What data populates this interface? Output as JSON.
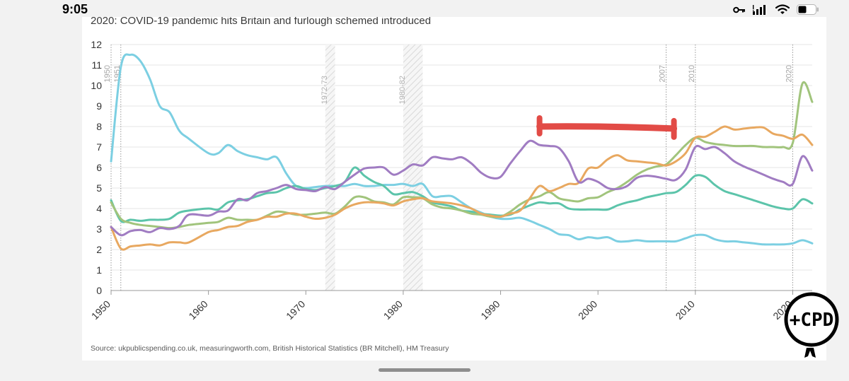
{
  "status_bar": {
    "time": "9:05",
    "icons": [
      "key-icon",
      "signal-icon",
      "wifi-icon",
      "battery-icon"
    ]
  },
  "logo": {
    "text": "+CPD"
  },
  "chart_data": {
    "type": "line",
    "title": "2020: COVID-19 pandemic hits Britain and furlough schemed introduced",
    "source": "Source: ukpublicspending.co.uk, measuringworth.com, British Historical Statistics (BR Mitchell), HM Treasury",
    "xlabel": "",
    "ylabel": "",
    "xlim": [
      1950,
      2022
    ],
    "ylim": [
      0,
      12
    ],
    "x_ticks": [
      "1950",
      "1960",
      "1970",
      "1980",
      "1990",
      "2000",
      "2010",
      "2020"
    ],
    "y_ticks": [
      "0",
      "1",
      "2",
      "3",
      "4",
      "5",
      "6",
      "7",
      "8",
      "9",
      "10",
      "11",
      "12"
    ],
    "grid": true,
    "markers": [
      {
        "label": "1950",
        "x": 1950
      },
      {
        "label": "1951",
        "x": 1951
      },
      {
        "label": "2007",
        "x": 2007
      },
      {
        "label": "2010",
        "x": 2010
      },
      {
        "label": "2020",
        "x": 2020
      }
    ],
    "bands": [
      {
        "label": "1972-73",
        "from": 1972,
        "to": 1973
      },
      {
        "label": "1980-82",
        "from": 1980,
        "to": 1982
      }
    ],
    "series": [
      {
        "name": "blue",
        "color": "#7ccfe2",
        "x": [
          1950,
          1951,
          1952,
          1953,
          1954,
          1955,
          1956,
          1957,
          1958,
          1960,
          1961,
          1962,
          1963,
          1964,
          1965,
          1966,
          1967,
          1968,
          1969,
          1970,
          1971,
          1972,
          1973,
          1974,
          1975,
          1976,
          1977,
          1978,
          1979,
          1980,
          1981,
          1982,
          1983,
          1984,
          1985,
          1986,
          1987,
          1988,
          1989,
          1990,
          1991,
          1992,
          1993,
          1994,
          1995,
          1996,
          1997,
          1998,
          1999,
          2000,
          2001,
          2002,
          2003,
          2004,
          2005,
          2006,
          2007,
          2008,
          2009,
          2010,
          2011,
          2012,
          2013,
          2014,
          2015,
          2016,
          2017,
          2018,
          2019,
          2020,
          2021,
          2022
        ],
        "y": [
          6.3,
          10.9,
          11.5,
          11.2,
          10.3,
          9.0,
          8.7,
          7.8,
          7.4,
          6.7,
          6.7,
          7.1,
          6.8,
          6.6,
          6.5,
          6.4,
          6.5,
          5.7,
          5.1,
          5.0,
          5.05,
          5.1,
          5.1,
          5.1,
          5.2,
          5.1,
          5.1,
          5.15,
          5.15,
          5.2,
          5.1,
          5.2,
          4.6,
          4.6,
          4.6,
          4.3,
          4.0,
          3.8,
          3.6,
          3.5,
          3.5,
          3.55,
          3.4,
          3.2,
          3.0,
          2.75,
          2.7,
          2.5,
          2.6,
          2.55,
          2.6,
          2.4,
          2.4,
          2.45,
          2.4,
          2.4,
          2.4,
          2.4,
          2.55,
          2.7,
          2.7,
          2.5,
          2.4,
          2.4,
          2.35,
          2.3,
          2.25,
          2.25,
          2.25,
          2.3,
          2.45,
          2.3
        ]
      },
      {
        "name": "teal",
        "color": "#5cc4aa",
        "x": [
          1950,
          1951,
          1952,
          1953,
          1954,
          1955,
          1956,
          1957,
          1958,
          1960,
          1961,
          1962,
          1963,
          1964,
          1965,
          1966,
          1967,
          1968,
          1969,
          1970,
          1971,
          1972,
          1973,
          1974,
          1975,
          1976,
          1977,
          1978,
          1979,
          1980,
          1981,
          1982,
          1983,
          1984,
          1985,
          1986,
          1987,
          1988,
          1989,
          1990,
          1991,
          1992,
          1993,
          1994,
          1995,
          1996,
          1997,
          1998,
          1999,
          2000,
          2001,
          2002,
          2003,
          2004,
          2005,
          2006,
          2007,
          2008,
          2009,
          2010,
          2011,
          2012,
          2013,
          2014,
          2015,
          2016,
          2017,
          2018,
          2019,
          2020,
          2021,
          2022
        ],
        "y": [
          4.4,
          3.4,
          3.45,
          3.4,
          3.45,
          3.45,
          3.5,
          3.8,
          3.9,
          4.0,
          3.95,
          4.3,
          4.4,
          4.45,
          4.6,
          4.75,
          4.8,
          5.0,
          5.1,
          4.95,
          4.9,
          5.0,
          5.1,
          5.3,
          6.0,
          5.6,
          5.3,
          5.1,
          4.7,
          4.75,
          4.8,
          4.6,
          4.3,
          4.2,
          4.1,
          3.9,
          3.85,
          3.75,
          3.7,
          3.65,
          3.7,
          3.95,
          4.15,
          4.3,
          4.25,
          4.25,
          4.0,
          3.95,
          3.95,
          3.95,
          3.95,
          4.15,
          4.3,
          4.4,
          4.55,
          4.65,
          4.75,
          4.8,
          5.15,
          5.6,
          5.55,
          5.15,
          4.85,
          4.7,
          4.55,
          4.4,
          4.25,
          4.1,
          4.0,
          4.0,
          4.45,
          4.25
        ]
      },
      {
        "name": "green",
        "color": "#a1c47c",
        "x": [
          1950,
          1951,
          1952,
          1953,
          1954,
          1955,
          1956,
          1957,
          1958,
          1960,
          1961,
          1962,
          1963,
          1964,
          1965,
          1966,
          1967,
          1968,
          1969,
          1970,
          1971,
          1972,
          1973,
          1974,
          1975,
          1976,
          1977,
          1978,
          1979,
          1980,
          1981,
          1982,
          1983,
          1984,
          1985,
          1986,
          1987,
          1988,
          1989,
          1990,
          1991,
          1992,
          1993,
          1994,
          1995,
          1996,
          1997,
          1998,
          1999,
          2000,
          2001,
          2002,
          2003,
          2004,
          2005,
          2006,
          2007,
          2008,
          2009,
          2010,
          2011,
          2012,
          2013,
          2014,
          2015,
          2016,
          2017,
          2018,
          2019,
          2020,
          2021,
          2022
        ],
        "y": [
          4.3,
          3.5,
          3.3,
          3.2,
          3.15,
          3.1,
          3.05,
          3.1,
          3.2,
          3.3,
          3.35,
          3.55,
          3.45,
          3.45,
          3.45,
          3.65,
          3.85,
          3.8,
          3.7,
          3.7,
          3.75,
          3.8,
          3.75,
          4.1,
          4.55,
          4.55,
          4.35,
          4.3,
          4.2,
          4.55,
          4.55,
          4.5,
          4.2,
          4.05,
          4.0,
          3.9,
          3.75,
          3.7,
          3.6,
          3.6,
          3.85,
          4.2,
          4.45,
          4.6,
          4.8,
          4.5,
          4.4,
          4.35,
          4.5,
          4.55,
          4.8,
          5.0,
          5.3,
          5.65,
          5.9,
          6.05,
          6.15,
          6.6,
          7.1,
          7.45,
          7.25,
          7.15,
          7.1,
          7.05,
          7.05,
          7.05,
          7.0,
          7.0,
          7.0,
          7.2,
          10.1,
          9.2
        ]
      },
      {
        "name": "orange",
        "color": "#e8a860",
        "x": [
          1950,
          1951,
          1952,
          1953,
          1954,
          1955,
          1956,
          1957,
          1958,
          1960,
          1961,
          1962,
          1963,
          1964,
          1965,
          1966,
          1967,
          1968,
          1969,
          1970,
          1971,
          1972,
          1973,
          1974,
          1975,
          1976,
          1977,
          1978,
          1979,
          1980,
          1981,
          1982,
          1983,
          1984,
          1985,
          1986,
          1987,
          1988,
          1989,
          1990,
          1991,
          1992,
          1993,
          1994,
          1995,
          1996,
          1997,
          1998,
          1999,
          2000,
          2001,
          2002,
          2003,
          2004,
          2005,
          2006,
          2007,
          2008,
          2009,
          2010,
          2011,
          2012,
          2013,
          2014,
          2015,
          2016,
          2017,
          2018,
          2019,
          2020,
          2021,
          2022
        ],
        "y": [
          3.1,
          2.05,
          2.15,
          2.2,
          2.25,
          2.2,
          2.35,
          2.35,
          2.35,
          2.85,
          2.95,
          3.1,
          3.15,
          3.35,
          3.45,
          3.6,
          3.6,
          3.75,
          3.75,
          3.6,
          3.5,
          3.55,
          3.7,
          4.0,
          4.2,
          4.3,
          4.3,
          4.25,
          4.15,
          4.35,
          4.45,
          4.5,
          4.35,
          4.3,
          4.25,
          4.15,
          4.0,
          3.75,
          3.65,
          3.6,
          3.75,
          3.9,
          4.5,
          5.1,
          4.85,
          5.0,
          5.2,
          5.25,
          5.95,
          6.0,
          6.4,
          6.6,
          6.35,
          6.3,
          6.25,
          6.2,
          6.1,
          6.3,
          6.7,
          7.45,
          7.5,
          7.75,
          8.0,
          7.85,
          7.9,
          7.95,
          7.95,
          7.65,
          7.55,
          7.4,
          7.6,
          7.1
        ]
      },
      {
        "name": "purple",
        "color": "#a07cc2",
        "x": [
          1950,
          1951,
          1952,
          1953,
          1954,
          1955,
          1956,
          1957,
          1958,
          1960,
          1961,
          1962,
          1963,
          1964,
          1965,
          1966,
          1967,
          1968,
          1969,
          1970,
          1971,
          1972,
          1973,
          1974,
          1975,
          1976,
          1977,
          1978,
          1979,
          1980,
          1981,
          1982,
          1983,
          1984,
          1985,
          1986,
          1987,
          1988,
          1989,
          1990,
          1991,
          1992,
          1993,
          1994,
          1995,
          1996,
          1997,
          1998,
          1999,
          2000,
          2001,
          2002,
          2003,
          2004,
          2005,
          2006,
          2007,
          2008,
          2009,
          2010,
          2011,
          2012,
          2013,
          2014,
          2015,
          2016,
          2017,
          2018,
          2019,
          2020,
          2021,
          2022
        ],
        "y": [
          3.1,
          2.7,
          2.9,
          2.95,
          2.85,
          3.05,
          3.0,
          3.15,
          3.7,
          3.65,
          3.85,
          3.9,
          4.45,
          4.4,
          4.75,
          4.85,
          5.0,
          5.15,
          4.95,
          4.9,
          4.85,
          5.05,
          4.95,
          5.3,
          5.65,
          5.95,
          6.0,
          6.0,
          5.65,
          5.85,
          6.15,
          6.1,
          6.5,
          6.45,
          6.4,
          6.5,
          6.2,
          5.75,
          5.5,
          5.55,
          6.2,
          6.8,
          7.3,
          7.1,
          7.05,
          6.95,
          6.3,
          5.3,
          5.45,
          5.3,
          5.0,
          4.95,
          5.1,
          5.5,
          5.6,
          5.55,
          5.45,
          5.4,
          5.9,
          7.0,
          6.9,
          7.0,
          6.7,
          6.3,
          6.05,
          5.85,
          5.65,
          5.45,
          5.3,
          5.2,
          6.55,
          5.85
        ]
      }
    ],
    "annotations": [
      {
        "kind": "red-bar",
        "color": "#e24b46",
        "x_from": 1994,
        "x_to": 2007.8,
        "y_from": 8.0,
        "y_to": 7.9
      }
    ]
  }
}
